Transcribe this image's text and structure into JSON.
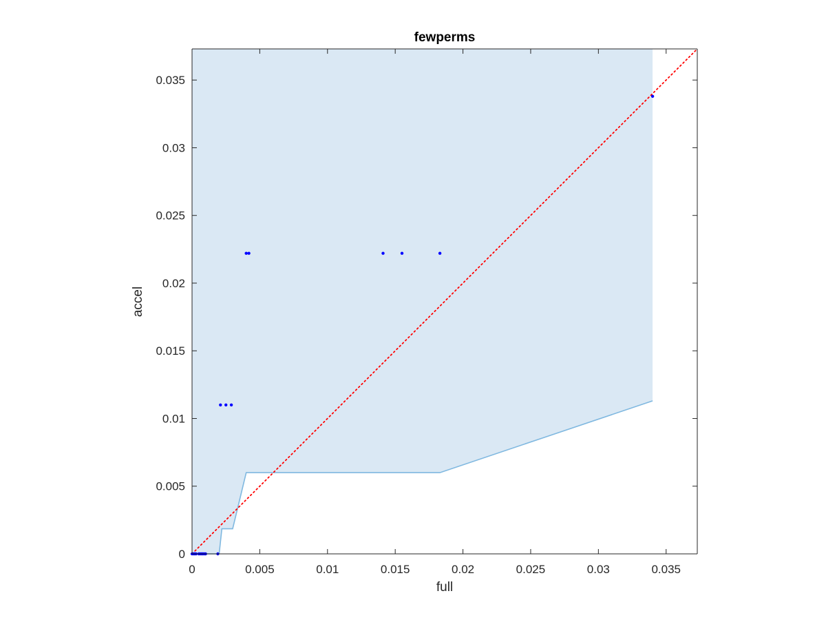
{
  "chart_data": {
    "type": "scatter",
    "title": "fewperms",
    "xlabel": "full",
    "ylabel": "accel",
    "xlim": [
      0,
      0.0373
    ],
    "ylim": [
      0,
      0.0373
    ],
    "xticks": [
      0,
      0.005,
      0.01,
      0.015,
      0.02,
      0.025,
      0.03,
      0.035
    ],
    "xtick_labels": [
      "0",
      "0.005",
      "0.01",
      "0.015",
      "0.02",
      "0.025",
      "0.03",
      "0.035"
    ],
    "yticks": [
      0,
      0.005,
      0.01,
      0.015,
      0.02,
      0.025,
      0.03,
      0.035
    ],
    "ytick_labels": [
      "0",
      "0.005",
      "0.01",
      "0.015",
      "0.02",
      "0.025",
      "0.03",
      "0.035"
    ],
    "grid": false,
    "colors": {
      "points": "#0000ff",
      "band_fill": "#dae8f4",
      "band_edge": "#7fb8e0",
      "reference_line": "#ff0000",
      "axes": "#262626"
    },
    "band": {
      "upper": [
        [
          0,
          0.0373
        ],
        [
          0.034,
          0.0373
        ]
      ],
      "lower": [
        [
          0,
          0
        ],
        [
          0.002,
          0
        ],
        [
          0.0022,
          0.00185
        ],
        [
          0.003,
          0.00185
        ],
        [
          0.004,
          0.006
        ],
        [
          0.0183,
          0.006
        ],
        [
          0.034,
          0.0113
        ]
      ]
    },
    "reference_line": {
      "style": "dotted",
      "x": [
        0,
        0.0373
      ],
      "y": [
        0,
        0.0373
      ]
    },
    "points": {
      "x": [
        0.0,
        0.0001,
        0.0002,
        0.0003,
        0.0005,
        0.0006,
        0.0007,
        0.0008,
        0.0009,
        0.001,
        0.0019,
        0.0021,
        0.0025,
        0.0029,
        0.004,
        0.0042,
        0.0141,
        0.0155,
        0.0183,
        0.034
      ],
      "y": [
        0,
        0,
        0,
        0,
        0,
        0,
        0,
        0,
        0,
        0,
        0,
        0.011,
        0.011,
        0.011,
        0.0222,
        0.0222,
        0.0222,
        0.0222,
        0.0222,
        0.0338
      ]
    }
  }
}
